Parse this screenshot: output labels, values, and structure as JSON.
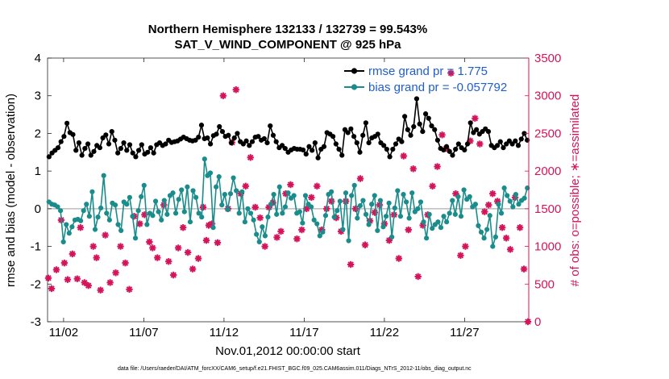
{
  "chart_data": {
    "type": "line",
    "title": "Northern Hemisphere 132133 / 132739 = 99.543%",
    "subtitle": "SAT_V_WIND_COMPONENT @ 925 hPa",
    "xlabel": "Nov.01,2012 00:00:00 start",
    "ylabel_left": "rmse and bias (model - observation)",
    "ylabel_right": "# of obs: o=possible; ∗=assimilated",
    "footnote": "data file: /Users/raeder/DAI/ATM_forcXX/CAM6_setup/f.e21.FHIST_BGC.f09_025.CAM6assim.011/Diags_NTrS_2012-11/obs_diag_output.nc",
    "x_ticks": [
      "11/02",
      "11/07",
      "11/12",
      "11/17",
      "11/22",
      "11/27"
    ],
    "x_tick_days": [
      2,
      7,
      12,
      17,
      22,
      27
    ],
    "xlim": [
      1,
      31
    ],
    "ylim_left": [
      -3,
      4
    ],
    "yticks_left": [
      "-3",
      "-2",
      "-1",
      "0",
      "1",
      "2",
      "3",
      "4"
    ],
    "ylim_right": [
      0,
      3500
    ],
    "yticks_right": [
      "0",
      "500",
      "1000",
      "1500",
      "2000",
      "2500",
      "3000",
      "3500"
    ],
    "grid": false,
    "legend_position": "top-right",
    "colors": {
      "rmse": "#000000",
      "bias": "#1a8c8c",
      "obs": "#d4145a",
      "zero": "#b0b0b0"
    },
    "series": [
      {
        "name": "rmse grand pr = 1.775",
        "axis": "left",
        "values": [
          1.38,
          1.48,
          1.55,
          1.62,
          1.78,
          1.92,
          2.27,
          2.02,
          1.97,
          1.55,
          1.75,
          1.42,
          1.6,
          1.72,
          1.42,
          1.52,
          1.68,
          1.62,
          1.88,
          1.96,
          1.72,
          2.05,
          1.82,
          1.48,
          1.6,
          1.75,
          1.55,
          1.7,
          1.48,
          1.38,
          1.55,
          1.7,
          1.45,
          1.5,
          1.62,
          1.48,
          1.7,
          1.75,
          1.68,
          1.72,
          1.82,
          1.76,
          1.78,
          1.8,
          1.85,
          1.9,
          1.86,
          1.82,
          1.8,
          1.82,
          1.9,
          2.22,
          1.86,
          1.88,
          1.72,
          1.94,
          1.98,
          2.18,
          2.05,
          1.92,
          1.95,
          1.75,
          1.88,
          2.0,
          1.78,
          1.72,
          1.8,
          1.68,
          1.78,
          1.9,
          1.92,
          1.82,
          1.86,
          1.75,
          2.2,
          1.95,
          1.78,
          1.62,
          1.68,
          1.6,
          1.5,
          1.56,
          1.6,
          1.58,
          1.58,
          1.56,
          1.45,
          1.65,
          1.55,
          1.75,
          1.35,
          1.58,
          1.65,
          2.02,
          1.98,
          1.92,
          1.72,
          1.58,
          1.42,
          2.1,
          2.02,
          2.12,
          1.92,
          1.75,
          1.5,
          1.95,
          2.28,
          1.75,
          1.88,
          1.92,
          1.98,
          1.75,
          1.68,
          1.58,
          1.38,
          1.58,
          1.72,
          1.85,
          1.78,
          2.45,
          2.1,
          1.95,
          2.18,
          2.92,
          2.25,
          2.05,
          2.52,
          2.4,
          2.2,
          2.1,
          1.82,
          1.6,
          1.56,
          1.65,
          1.52,
          1.42,
          1.58,
          1.72,
          1.62,
          1.56,
          1.72,
          2.28,
          2.02,
          2.1,
          1.98,
          2.05,
          2.12,
          2.05,
          1.68,
          1.62,
          1.68,
          1.78,
          1.62,
          1.72,
          1.8,
          1.72,
          1.8,
          1.68,
          1.85,
          2.0,
          1.82
        ]
      },
      {
        "name": "bias grand pr = -0.057792",
        "axis": "left",
        "values": [
          0.18,
          0.12,
          0.1,
          0.05,
          -0.05,
          -0.88,
          -0.42,
          -0.65,
          -0.48,
          -0.3,
          -0.28,
          -0.32,
          -0.05,
          0.12,
          -0.2,
          0.45,
          -0.55,
          -0.22,
          0.02,
          0.88,
          -0.12,
          -0.3,
          0.15,
          0.1,
          -0.42,
          -0.58,
          0.18,
          0.12,
          0.3,
          -0.2,
          -0.78,
          -0.05,
          0.32,
          0.62,
          -0.42,
          -0.12,
          -0.18,
          0.2,
          -0.08,
          -0.3,
          0.22,
          -0.15,
          0.35,
          0.42,
          -0.12,
          0.25,
          0.5,
          -0.08,
          0.58,
          -0.35,
          0.48,
          0.3,
          -0.12,
          -0.22,
          1.32,
          0.88,
          0.95,
          -0.5,
          0.58,
          0.85,
          0.1,
          0.38,
          -0.02,
          0.4,
          0.82,
          0.48,
          -0.12,
          0.45,
          -0.35,
          0.0,
          -0.12,
          -0.3,
          -0.68,
          -0.88,
          -0.48,
          -0.72,
          -0.22,
          0.12,
          0.38,
          -0.15,
          0.58,
          -0.12,
          0.05,
          0.42,
          0.28,
          0.35,
          -0.12,
          -0.08,
          -0.38,
          0.35,
          0.12,
          0.05,
          -0.3,
          -0.4,
          -0.72,
          -0.62,
          -0.18,
          0.38,
          0.45,
          -0.22,
          -0.05,
          0.2,
          -0.55,
          0.42,
          -0.85,
          0.35,
          0.62,
          -0.25,
          0.08,
          0.22,
          -0.15,
          -0.42,
          0.12,
          0.35,
          -0.58,
          0.22,
          -0.48,
          -0.2,
          0.15,
          -0.75,
          0.02,
          0.48,
          -0.2,
          0.38,
          0.18,
          -0.25,
          0.42,
          -0.08,
          0.0,
          0.18,
          -0.35,
          -0.78,
          -0.15,
          -0.52,
          -0.42,
          -0.35,
          -0.5,
          -0.2,
          -0.35,
          -0.12,
          0.22,
          -0.15,
          0.32,
          -0.2,
          0.5,
          0.25,
          0.32,
          0.05,
          0.12,
          -0.45,
          -0.62,
          -0.78,
          -0.55,
          -0.18,
          -1.0,
          -0.75,
          0.12,
          -0.12,
          0.55,
          0.35,
          0.2,
          0.05,
          0.38,
          0.12,
          0.22,
          0.28,
          0.55
        ]
      },
      {
        "name": "# of obs assimilated",
        "axis": "right",
        "x": [
          1.05,
          1.25,
          1.55,
          1.85,
          2.05,
          2.25,
          2.55,
          2.85,
          3.05,
          3.3,
          3.55,
          3.85,
          4.05,
          4.3,
          4.6,
          4.9,
          5.25,
          5.55,
          5.85,
          6.1,
          6.4,
          6.75,
          7.05,
          7.35,
          7.55,
          7.85,
          8.25,
          8.55,
          8.85,
          9.15,
          9.45,
          9.75,
          10.05,
          10.4,
          10.7,
          10.9,
          11.05,
          11.25,
          11.6,
          11.95,
          12.25,
          12.5,
          12.75,
          13.05,
          13.35,
          13.65,
          13.95,
          14.25,
          14.55,
          14.8,
          15.05,
          15.3,
          15.55,
          15.85,
          16.15,
          16.55,
          16.85,
          17.15,
          17.45,
          17.8,
          18.1,
          18.4,
          18.7,
          19.0,
          19.3,
          19.6,
          19.9,
          20.2,
          20.5,
          20.8,
          21.1,
          21.4,
          21.7,
          22.0,
          22.3,
          22.6,
          22.9,
          23.2,
          23.5,
          23.8,
          24.1,
          24.4,
          24.7,
          25.0,
          25.3,
          25.6,
          25.85,
          26.15,
          26.45,
          26.75,
          27.05,
          27.35,
          27.65,
          27.95,
          28.25,
          28.5,
          28.75,
          29.05,
          29.35,
          29.6,
          29.85,
          30.15,
          30.45,
          30.7,
          30.95
        ],
        "values": [
          580,
          440,
          690,
          1350,
          780,
          560,
          900,
          570,
          1250,
          520,
          480,
          1000,
          850,
          420,
          1150,
          520,
          650,
          1000,
          780,
          430,
          1400,
          1300,
          1420,
          1060,
          980,
          850,
          1550,
          800,
          620,
          980,
          1250,
          920,
          700,
          840,
          1520,
          1080,
          1280,
          1300,
          1050,
          3000,
          1500,
          2380,
          3080,
          1700,
          1800,
          2180,
          1520,
          1380,
          1000,
          1520,
          1580,
          1120,
          1200,
          1700,
          1820,
          1100,
          1220,
          1500,
          1650,
          1800,
          1220,
          1500,
          1600,
          1380,
          1200,
          1600,
          760,
          1500,
          1900,
          1020,
          1340,
          1450,
          1550,
          1300,
          1080,
          1420,
          840,
          2200,
          1220,
          2030,
          600,
          1280,
          1420,
          1800,
          2060,
          2480,
          2300,
          3300,
          1700,
          880,
          1000,
          2400,
          2700,
          2360,
          1460,
          1550,
          1700,
          1600,
          1250,
          1110,
          960,
          1650,
          1250,
          700,
          0
        ]
      }
    ]
  }
}
